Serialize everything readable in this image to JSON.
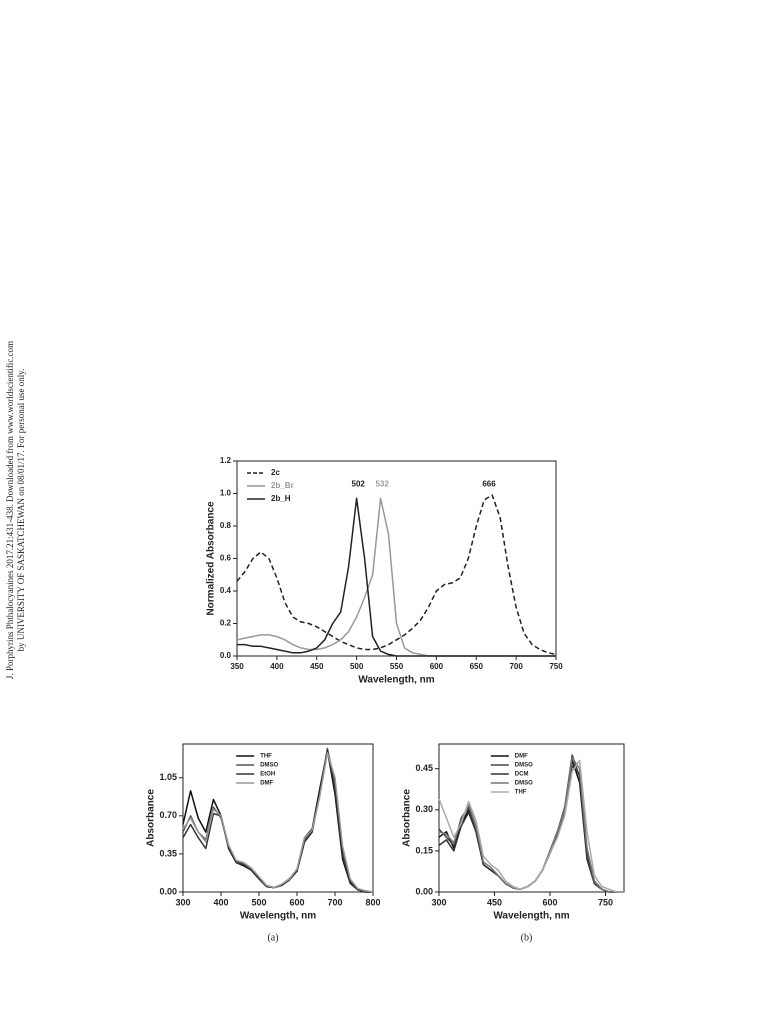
{
  "side_note": [
    "J. Porphyrins Phthalocyanines 2017.21:431-438. Downloaded from www.worldscientific.com",
    "by UNIVERSITY OF SASKATCHEWAN on 08/01/17. For personal use only."
  ],
  "chart_data": [
    {
      "type": "line",
      "xlabel": "Wavelength, nm",
      "ylabel": "Normalized Absorbance",
      "x": [
        350,
        360,
        370,
        380,
        390,
        400,
        410,
        420,
        430,
        440,
        450,
        460,
        470,
        480,
        490,
        500,
        510,
        520,
        530,
        540,
        550,
        560,
        570,
        580,
        590,
        600,
        610,
        620,
        630,
        640,
        650,
        660,
        670,
        680,
        690,
        700,
        710,
        720,
        730,
        740,
        750
      ],
      "series": [
        {
          "name": "2c",
          "color": "#222222",
          "dash": true,
          "values": [
            0.46,
            0.52,
            0.6,
            0.64,
            0.6,
            0.48,
            0.33,
            0.24,
            0.21,
            0.2,
            0.18,
            0.15,
            0.12,
            0.09,
            0.07,
            0.05,
            0.04,
            0.04,
            0.05,
            0.07,
            0.1,
            0.13,
            0.17,
            0.22,
            0.3,
            0.4,
            0.44,
            0.45,
            0.48,
            0.6,
            0.8,
            0.96,
            0.99,
            0.85,
            0.55,
            0.3,
            0.14,
            0.07,
            0.04,
            0.02,
            0.01
          ]
        },
        {
          "name": "2b_Br",
          "color": "#999999",
          "dash": false,
          "values": [
            0.1,
            0.11,
            0.12,
            0.13,
            0.13,
            0.12,
            0.1,
            0.07,
            0.05,
            0.04,
            0.04,
            0.05,
            0.07,
            0.1,
            0.15,
            0.24,
            0.36,
            0.5,
            0.97,
            0.75,
            0.2,
            0.05,
            0.02,
            0.01,
            0,
            0,
            0,
            0,
            0,
            0,
            0,
            0,
            0,
            0,
            0,
            0,
            0,
            0,
            0,
            0,
            0
          ]
        },
        {
          "name": "2b_H",
          "color": "#222222",
          "dash": false,
          "values": [
            0.07,
            0.07,
            0.06,
            0.06,
            0.05,
            0.04,
            0.03,
            0.02,
            0.02,
            0.03,
            0.05,
            0.1,
            0.2,
            0.27,
            0.55,
            0.97,
            0.6,
            0.12,
            0.03,
            0.01,
            0,
            0,
            0,
            0,
            0,
            0,
            0,
            0,
            0,
            0,
            0,
            0,
            0,
            0,
            0,
            0,
            0,
            0,
            0,
            0,
            0
          ]
        }
      ],
      "annotations": [
        {
          "text": "502",
          "x": 502,
          "y": 1.0,
          "color": "#222222"
        },
        {
          "text": "532",
          "x": 532,
          "y": 1.0,
          "color": "#999999"
        },
        {
          "text": "666",
          "x": 666,
          "y": 1.0,
          "color": "#222222"
        }
      ],
      "xlim": [
        350,
        750
      ],
      "xticks": [
        350,
        400,
        450,
        500,
        550,
        600,
        650,
        700,
        750
      ],
      "ylim": [
        0,
        1.2
      ],
      "yticks": [
        {
          "value": 0,
          "label": "0.0"
        },
        0.2,
        0.4,
        0.6,
        0.8,
        {
          "value": 1,
          "label": "1.0"
        },
        1.2
      ],
      "legend": "upper left"
    },
    {
      "type": "line",
      "xlabel": "Wavelength, nm",
      "ylabel": "Absorbance",
      "caption": "(a)",
      "x": [
        300,
        320,
        340,
        360,
        380,
        400,
        420,
        440,
        460,
        480,
        500,
        520,
        540,
        560,
        580,
        600,
        620,
        640,
        660,
        680,
        700,
        720,
        740,
        760,
        780,
        800
      ],
      "series": [
        {
          "name": "THF",
          "color": "#111111",
          "dash": false,
          "values": [
            0.62,
            0.93,
            0.68,
            0.55,
            0.85,
            0.7,
            0.4,
            0.27,
            0.24,
            0.2,
            0.12,
            0.05,
            0.04,
            0.07,
            0.12,
            0.2,
            0.5,
            0.58,
            0.95,
            1.3,
            0.9,
            0.3,
            0.08,
            0.02,
            0,
            0
          ]
        },
        {
          "name": "DMSO",
          "color": "#555555",
          "dash": false,
          "values": [
            0.55,
            0.7,
            0.55,
            0.48,
            0.78,
            0.68,
            0.42,
            0.28,
            0.26,
            0.21,
            0.13,
            0.06,
            0.04,
            0.07,
            0.12,
            0.2,
            0.48,
            0.56,
            0.9,
            1.32,
            1.0,
            0.38,
            0.1,
            0.03,
            0.01,
            0
          ]
        },
        {
          "name": "EtOH",
          "color": "#333333",
          "dash": false,
          "values": [
            0.5,
            0.62,
            0.5,
            0.4,
            0.72,
            0.7,
            0.42,
            0.27,
            0.25,
            0.2,
            0.12,
            0.05,
            0.04,
            0.06,
            0.11,
            0.19,
            0.46,
            0.55,
            0.92,
            1.3,
            0.95,
            0.33,
            0.09,
            0.02,
            0,
            0
          ]
        },
        {
          "name": "DMF",
          "color": "#999999",
          "dash": false,
          "values": [
            0.58,
            0.68,
            0.55,
            0.46,
            0.76,
            0.7,
            0.43,
            0.29,
            0.27,
            0.22,
            0.14,
            0.06,
            0.04,
            0.07,
            0.12,
            0.21,
            0.5,
            0.57,
            0.88,
            1.28,
            1.05,
            0.42,
            0.12,
            0.03,
            0.01,
            0
          ]
        }
      ],
      "xlim": [
        300,
        800
      ],
      "xticks": [
        300,
        400,
        500,
        600,
        700,
        800
      ],
      "ylim": [
        0,
        1.36
      ],
      "yticks": [
        {
          "value": 0,
          "label": "0.00"
        },
        0.35,
        {
          "value": 0.7,
          "label": "0.70"
        },
        1.05
      ],
      "legend": "upper center"
    },
    {
      "type": "line",
      "xlabel": "Wavelength, nm",
      "ylabel": "Absorbance",
      "caption": "(b)",
      "x": [
        300,
        320,
        340,
        360,
        380,
        400,
        420,
        440,
        460,
        480,
        500,
        520,
        540,
        560,
        580,
        600,
        620,
        640,
        660,
        680,
        700,
        720,
        740,
        760,
        780,
        800
      ],
      "series": [
        {
          "name": "DMF",
          "color": "#111111",
          "dash": false,
          "values": [
            0.2,
            0.22,
            0.16,
            0.25,
            0.3,
            0.22,
            0.1,
            0.08,
            0.06,
            0.03,
            0.015,
            0.01,
            0.02,
            0.04,
            0.08,
            0.15,
            0.22,
            0.3,
            0.48,
            0.4,
            0.12,
            0.03,
            0.01,
            0,
            0,
            0
          ]
        },
        {
          "name": "DMSO",
          "color": "#444444",
          "dash": false,
          "values": [
            0.23,
            0.2,
            0.17,
            0.27,
            0.31,
            0.23,
            0.1,
            0.08,
            0.06,
            0.03,
            0.015,
            0.01,
            0.02,
            0.04,
            0.08,
            0.15,
            0.22,
            0.31,
            0.5,
            0.42,
            0.13,
            0.03,
            0.01,
            0,
            0,
            0
          ]
        },
        {
          "name": "DCM",
          "color": "#333333",
          "dash": false,
          "values": [
            0.17,
            0.19,
            0.15,
            0.24,
            0.29,
            0.22,
            0.1,
            0.08,
            0.06,
            0.03,
            0.015,
            0.01,
            0.02,
            0.04,
            0.08,
            0.14,
            0.21,
            0.29,
            0.46,
            0.43,
            0.15,
            0.04,
            0.01,
            0,
            0,
            0
          ]
        },
        {
          "name": "DMSO",
          "color": "#777777",
          "dash": false,
          "values": [
            0.22,
            0.21,
            0.18,
            0.26,
            0.32,
            0.24,
            0.11,
            0.09,
            0.06,
            0.03,
            0.015,
            0.01,
            0.02,
            0.04,
            0.08,
            0.15,
            0.22,
            0.3,
            0.49,
            0.45,
            0.16,
            0.04,
            0.01,
            0,
            0,
            0
          ]
        },
        {
          "name": "THF",
          "color": "#aaaaaa",
          "dash": false,
          "values": [
            0.34,
            0.27,
            0.2,
            0.25,
            0.33,
            0.26,
            0.13,
            0.1,
            0.08,
            0.04,
            0.02,
            0.01,
            0.02,
            0.04,
            0.08,
            0.14,
            0.2,
            0.28,
            0.44,
            0.48,
            0.22,
            0.06,
            0.02,
            0.01,
            0,
            0
          ]
        }
      ],
      "xlim": [
        300,
        800
      ],
      "xticks": [
        300,
        450,
        600,
        750
      ],
      "ylim": [
        0,
        0.54
      ],
      "yticks": [
        {
          "value": 0,
          "label": "0.00"
        },
        0.15,
        {
          "value": 0.3,
          "label": "0.30"
        },
        0.45
      ],
      "legend": "upper center"
    }
  ]
}
